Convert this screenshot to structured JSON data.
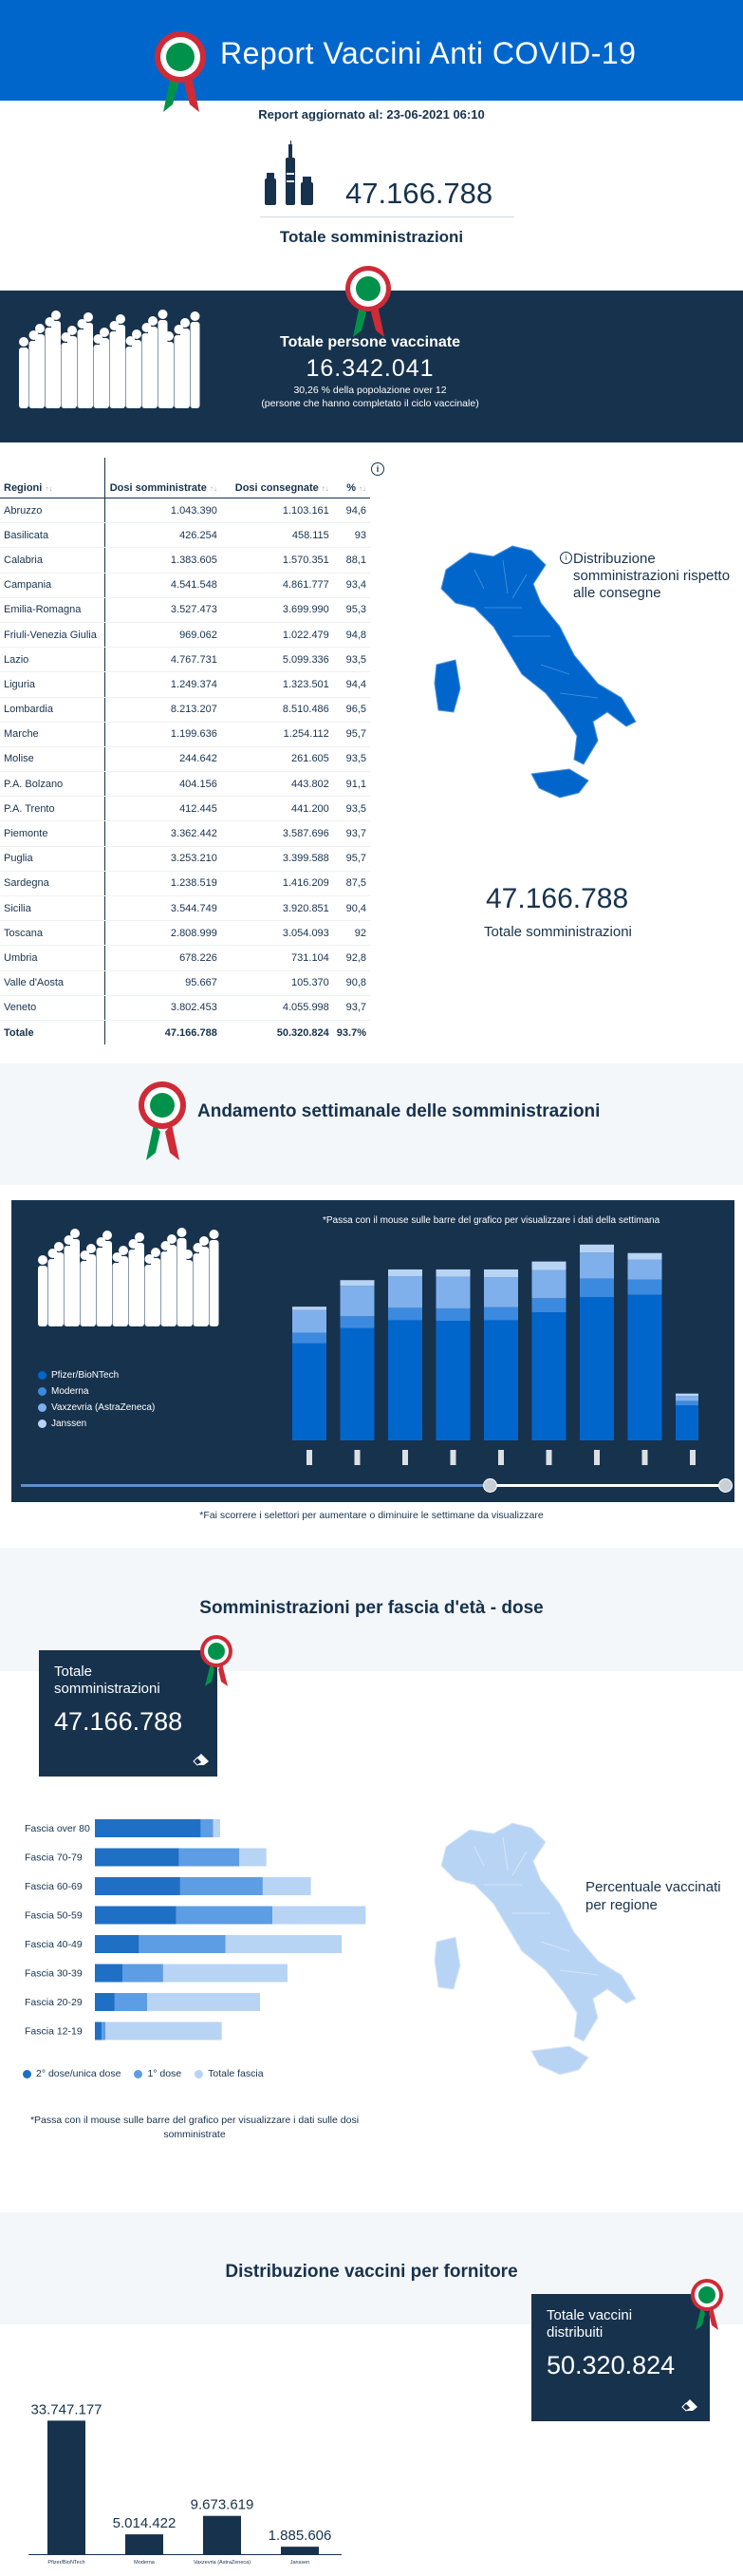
{
  "header": {
    "title": "Report Vaccini Anti COVID-19"
  },
  "updated": "Report aggiornato al: 23-06-2021 06:10",
  "total": {
    "value": "47.166.788",
    "label": "Totale somministrazioni"
  },
  "vaccinated": {
    "title": "Totale persone vaccinate",
    "value": "16.342.041",
    "sub1": "30,26 % della popolazione over 12",
    "sub2": "(persone che hanno completato il ciclo vaccinale)"
  },
  "table": {
    "headers": [
      "Regioni",
      "Dosi somministrate",
      "Dosi consegnate",
      "%"
    ],
    "sort_glyph": "↑↓",
    "info_glyph": "i",
    "rows": [
      [
        "Abruzzo",
        "1.043.390",
        "1.103.161",
        "94,6"
      ],
      [
        "Basilicata",
        "426.254",
        "458.115",
        "93"
      ],
      [
        "Calabria",
        "1.383.605",
        "1.570.351",
        "88,1"
      ],
      [
        "Campania",
        "4.541.548",
        "4.861.777",
        "93,4"
      ],
      [
        "Emilia-Romagna",
        "3.527.473",
        "3.699.990",
        "95,3"
      ],
      [
        "Friuli-Venezia Giulia",
        "969.062",
        "1.022.479",
        "94,8"
      ],
      [
        "Lazio",
        "4.767.731",
        "5.099.336",
        "93,5"
      ],
      [
        "Liguria",
        "1.249.374",
        "1.323.501",
        "94,4"
      ],
      [
        "Lombardia",
        "8.213.207",
        "8.510.486",
        "96,5"
      ],
      [
        "Marche",
        "1.199.636",
        "1.254.112",
        "95,7"
      ],
      [
        "Molise",
        "244.642",
        "261.605",
        "93,5"
      ],
      [
        "P.A. Bolzano",
        "404.156",
        "443.802",
        "91,1"
      ],
      [
        "P.A. Trento",
        "412.445",
        "441.200",
        "93,5"
      ],
      [
        "Piemonte",
        "3.362.442",
        "3.587.696",
        "93,7"
      ],
      [
        "Puglia",
        "3.253.210",
        "3.399.588",
        "95,7"
      ],
      [
        "Sardegna",
        "1.238.519",
        "1.416.209",
        "87,5"
      ],
      [
        "Sicilia",
        "3.544.749",
        "3.920.851",
        "90,4"
      ],
      [
        "Toscana",
        "2.808.999",
        "3.054.093",
        "92"
      ],
      [
        "Umbria",
        "678.226",
        "731.104",
        "92,8"
      ],
      [
        "Valle d'Aosta",
        "95.667",
        "105.370",
        "90,8"
      ],
      [
        "Veneto",
        "3.802.453",
        "4.055.998",
        "93,7"
      ]
    ],
    "total_row": [
      "Totale",
      "47.166.788",
      "50.320.824",
      "93.7%"
    ]
  },
  "map1": {
    "label": "Distribuzione somministrazioni rispetto alle consegne",
    "total_value": "47.166.788",
    "total_label": "Totale somministrazioni",
    "color": "#0066cc"
  },
  "weekly": {
    "title": "Andamento settimanale delle somministrazioni",
    "hint": "*Passa con il mouse sulle barre del grafico per visualizzare i dati della settimana",
    "footnote": "*Fai scorrere i selettori per aumentare o diminuire le settimane da visualizzare",
    "legend": [
      {
        "name": "Pfizer/BioNTech",
        "color": "#0066cc"
      },
      {
        "name": "Moderna",
        "color": "#3c8ae0"
      },
      {
        "name": "Vaxzevria (AstraZeneca)",
        "color": "#7fb0ec"
      },
      {
        "name": "Janssen",
        "color": "#b8d4f5"
      }
    ]
  },
  "chart_data": [
    {
      "type": "bar",
      "stacked": true,
      "series": [
        {
          "name": "Pfizer/BioNTech",
          "values": [
            1.72,
            1.99,
            2.13,
            2.12,
            2.13,
            2.27,
            2.54,
            2.58,
            0.62
          ]
        },
        {
          "name": "Moderna",
          "values": [
            0.19,
            0.21,
            0.22,
            0.22,
            0.23,
            0.25,
            0.33,
            0.27,
            0.08
          ]
        },
        {
          "name": "Vaxzevria (AstraZeneca)",
          "values": [
            0.4,
            0.54,
            0.56,
            0.56,
            0.53,
            0.5,
            0.46,
            0.35,
            0.09
          ]
        },
        {
          "name": "Janssen",
          "values": [
            0.06,
            0.1,
            0.12,
            0.13,
            0.14,
            0.15,
            0.14,
            0.12,
            0.04
          ]
        }
      ],
      "ylim": [
        0,
        3.5
      ]
    },
    {
      "type": "bar",
      "orientation": "horizontal",
      "categories": [
        "Fascia over 80",
        "Fascia 70-79",
        "Fascia 60-69",
        "Fascia 50-59",
        "Fascia 40-49",
        "Fascia 30-39",
        "Fascia 20-29",
        "Fascia 12-19"
      ],
      "series": [
        {
          "name": "2° dose/unica dose",
          "values": [
            0.385,
            0.305,
            0.31,
            0.295,
            0.16,
            0.1,
            0.072,
            0.025
          ]
        },
        {
          "name": "1° dose",
          "values": [
            0.045,
            0.22,
            0.3,
            0.35,
            0.315,
            0.148,
            0.118,
            0.014
          ]
        },
        {
          "name": "Totale fascia",
          "values": [
            0.025,
            0.098,
            0.175,
            0.339,
            0.422,
            0.452,
            0.41,
            0.422
          ]
        }
      ]
    },
    {
      "type": "bar",
      "categories": [
        "Pfizer/BioNTech",
        "Moderna",
        "Vaxzevria (AstraZeneca)",
        "Janssen"
      ],
      "values": [
        33747177,
        5014422,
        9673619,
        1885606
      ],
      "labels": [
        "33.747.177",
        "5.014.422",
        "9.673.619",
        "1.885.606"
      ],
      "ylim": [
        0,
        36000000
      ]
    }
  ],
  "age": {
    "title": "Somministrazioni per fascia d'età - dose",
    "card_title": "Totale somministrazioni",
    "card_value": "47.166.788",
    "legend": [
      {
        "name": "2° dose/unica dose",
        "color": "#1f6fc5"
      },
      {
        "name": "1° dose",
        "color": "#5d9de3"
      },
      {
        "name": "Totale fascia",
        "color": "#b8d4f5"
      }
    ],
    "footnote": "*Passa con il mouse sulle barre del grafico per visualizzare i dati sulle dosi somministrate",
    "map_label": "Percentuale vaccinati per regione"
  },
  "suppliers": {
    "title": "Distribuzione vaccini per fornitore",
    "card_title": "Totale vaccini distribuiti",
    "card_value": "50.320.824"
  }
}
